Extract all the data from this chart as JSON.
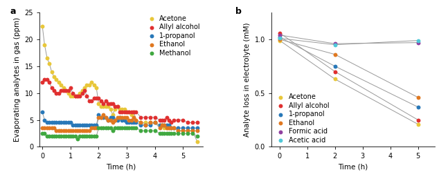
{
  "panel_a": {
    "xlabel": "Time (h)",
    "ylabel": "Evaporating analytes in gas (ppm)",
    "ylim": [
      0,
      25
    ],
    "xlim": [
      -0.1,
      5.7
    ],
    "yticks": [
      0,
      5,
      10,
      15,
      20,
      25
    ],
    "xticks": [
      0,
      1,
      2,
      3,
      4,
      5
    ],
    "series": {
      "Acetone": {
        "color": "#e8c73a",
        "x": [
          0.0,
          0.08,
          0.17,
          0.25,
          0.33,
          0.42,
          0.5,
          0.58,
          0.67,
          0.75,
          0.83,
          0.92,
          1.0,
          1.08,
          1.17,
          1.25,
          1.33,
          1.42,
          1.5,
          1.58,
          1.67,
          1.75,
          1.83,
          1.92,
          2.0,
          2.08,
          2.17,
          2.25,
          2.33,
          2.42,
          2.5,
          2.58,
          2.67,
          2.75,
          2.83,
          2.92,
          3.0,
          3.08,
          3.17,
          3.25,
          3.33,
          3.5,
          3.67,
          3.83,
          4.0,
          4.17,
          4.25,
          4.33,
          4.42,
          4.5,
          4.58,
          4.67,
          4.83,
          5.0,
          5.17,
          5.33,
          5.5
        ],
        "y": [
          22.5,
          19.0,
          16.5,
          15.5,
          14.0,
          13.0,
          12.5,
          12.0,
          11.5,
          11.0,
          10.5,
          10.0,
          9.5,
          9.5,
          9.5,
          9.5,
          10.0,
          10.5,
          11.0,
          11.5,
          11.5,
          12.0,
          11.5,
          11.0,
          8.0,
          7.5,
          7.5,
          7.5,
          7.5,
          7.0,
          6.0,
          7.0,
          7.5,
          7.0,
          7.0,
          7.0,
          6.5,
          6.5,
          6.0,
          6.5,
          5.0,
          4.5,
          4.5,
          4.5,
          4.5,
          4.0,
          4.0,
          3.5,
          3.5,
          3.5,
          3.5,
          3.5,
          3.0,
          3.0,
          3.0,
          3.0,
          1.0
        ]
      },
      "Allyl alcohol": {
        "color": "#e03030",
        "x": [
          0.0,
          0.08,
          0.17,
          0.25,
          0.33,
          0.42,
          0.5,
          0.58,
          0.67,
          0.75,
          0.83,
          0.92,
          1.0,
          1.08,
          1.17,
          1.25,
          1.33,
          1.42,
          1.5,
          1.58,
          1.67,
          1.75,
          1.83,
          1.92,
          2.0,
          2.08,
          2.17,
          2.25,
          2.33,
          2.42,
          2.5,
          2.58,
          2.67,
          2.75,
          2.83,
          2.92,
          3.0,
          3.08,
          3.17,
          3.25,
          3.33,
          3.5,
          3.67,
          3.83,
          4.0,
          4.17,
          4.25,
          4.33,
          4.42,
          4.5,
          4.58,
          4.67,
          4.83,
          5.0,
          5.17,
          5.33,
          5.5
        ],
        "y": [
          12.0,
          12.5,
          12.5,
          12.0,
          11.0,
          10.5,
          10.0,
          10.0,
          10.5,
          10.5,
          10.5,
          10.5,
          11.0,
          10.0,
          9.5,
          9.5,
          9.5,
          10.0,
          10.5,
          9.5,
          8.5,
          8.5,
          9.0,
          9.0,
          9.0,
          8.5,
          8.0,
          8.5,
          8.0,
          8.0,
          8.0,
          7.5,
          7.5,
          6.5,
          6.5,
          6.5,
          6.5,
          6.5,
          6.5,
          6.5,
          6.5,
          5.5,
          5.5,
          5.5,
          5.5,
          5.0,
          5.0,
          5.0,
          5.5,
          5.0,
          4.5,
          5.0,
          5.0,
          5.0,
          4.5,
          4.5,
          4.5
        ]
      },
      "1-propanol": {
        "color": "#2878b8",
        "x": [
          0.0,
          0.08,
          0.17,
          0.25,
          0.33,
          0.42,
          0.5,
          0.58,
          0.67,
          0.75,
          0.83,
          0.92,
          1.0,
          1.08,
          1.17,
          1.25,
          1.33,
          1.42,
          1.5,
          1.58,
          1.67,
          1.75,
          1.83,
          1.92,
          2.0,
          2.08,
          2.17,
          2.25,
          2.33,
          2.42,
          2.5,
          2.58,
          2.67,
          2.75,
          2.83,
          2.92,
          3.0,
          3.08,
          3.17,
          3.25,
          3.33,
          3.5,
          3.67,
          3.83,
          4.0,
          4.17,
          4.25,
          4.33,
          4.42,
          4.5,
          4.58,
          4.67,
          4.83,
          5.0,
          5.17,
          5.33,
          5.5
        ],
        "y": [
          6.5,
          5.0,
          4.5,
          4.5,
          4.5,
          4.5,
          4.5,
          4.5,
          4.5,
          4.5,
          4.5,
          4.5,
          4.5,
          4.0,
          4.0,
          4.0,
          4.0,
          4.0,
          4.0,
          4.0,
          4.0,
          4.0,
          4.0,
          4.0,
          6.0,
          5.5,
          5.5,
          5.5,
          5.0,
          5.5,
          5.5,
          5.0,
          5.0,
          5.5,
          5.0,
          5.0,
          4.5,
          4.5,
          4.5,
          4.5,
          4.5,
          4.0,
          4.0,
          4.0,
          4.5,
          4.0,
          4.0,
          4.0,
          4.0,
          4.0,
          3.5,
          3.5,
          3.5,
          3.5,
          3.5,
          3.5,
          3.5
        ]
      },
      "Ethanol": {
        "color": "#e07820",
        "x": [
          0.0,
          0.08,
          0.17,
          0.25,
          0.33,
          0.42,
          0.5,
          0.58,
          0.67,
          0.75,
          0.83,
          0.92,
          1.0,
          1.08,
          1.17,
          1.25,
          1.33,
          1.42,
          1.5,
          1.58,
          1.67,
          1.75,
          1.83,
          1.92,
          2.0,
          2.08,
          2.17,
          2.25,
          2.33,
          2.42,
          2.5,
          2.58,
          2.67,
          2.75,
          2.83,
          2.92,
          3.0,
          3.08,
          3.17,
          3.25,
          3.33,
          3.5,
          3.67,
          3.83,
          4.0,
          4.17,
          4.25,
          4.33,
          4.42,
          4.5,
          4.58,
          4.67,
          4.83,
          5.0,
          5.17,
          5.33,
          5.5
        ],
        "y": [
          3.5,
          3.5,
          3.5,
          3.5,
          3.5,
          3.5,
          3.0,
          3.0,
          3.0,
          3.0,
          3.0,
          3.0,
          3.0,
          3.0,
          3.0,
          3.0,
          3.0,
          3.0,
          3.0,
          3.0,
          3.0,
          3.5,
          3.5,
          3.5,
          5.5,
          5.5,
          6.0,
          5.5,
          5.0,
          5.0,
          4.5,
          5.0,
          5.5,
          5.5,
          5.5,
          5.5,
          5.5,
          5.0,
          5.0,
          5.5,
          5.0,
          4.5,
          4.0,
          4.5,
          4.5,
          3.5,
          4.0,
          4.0,
          3.5,
          3.5,
          3.5,
          3.5,
          3.0,
          3.0,
          3.0,
          3.0,
          3.0
        ]
      },
      "Methanol": {
        "color": "#40a840",
        "x": [
          0.0,
          0.08,
          0.17,
          0.25,
          0.33,
          0.42,
          0.5,
          0.58,
          0.67,
          0.75,
          0.83,
          0.92,
          1.0,
          1.08,
          1.17,
          1.25,
          1.33,
          1.42,
          1.5,
          1.58,
          1.67,
          1.75,
          1.83,
          1.92,
          2.0,
          2.08,
          2.17,
          2.25,
          2.33,
          2.42,
          2.5,
          2.58,
          2.67,
          2.75,
          2.83,
          2.92,
          3.0,
          3.08,
          3.17,
          3.25,
          3.33,
          3.5,
          3.67,
          3.83,
          4.0,
          4.17,
          4.25,
          4.33,
          4.42,
          4.5,
          4.58,
          4.67,
          4.83,
          5.0,
          5.17,
          5.33,
          5.5
        ],
        "y": [
          2.5,
          2.5,
          2.0,
          2.0,
          2.0,
          2.0,
          2.0,
          2.0,
          2.0,
          2.0,
          2.0,
          2.0,
          2.0,
          2.0,
          2.0,
          1.5,
          2.0,
          2.0,
          2.0,
          2.0,
          2.0,
          2.0,
          2.0,
          2.0,
          3.5,
          3.5,
          3.5,
          3.5,
          3.5,
          3.5,
          3.0,
          3.5,
          3.5,
          3.5,
          3.5,
          3.5,
          3.5,
          3.5,
          3.5,
          3.5,
          3.5,
          3.0,
          3.0,
          3.0,
          3.0,
          2.5,
          2.5,
          2.5,
          2.5,
          2.5,
          2.5,
          2.5,
          2.5,
          2.5,
          2.5,
          2.5,
          2.0
        ]
      }
    }
  },
  "panel_b": {
    "xlabel": "Time (h)",
    "ylabel": "Analyte loss in electrolyte (mM)",
    "ylim": [
      0,
      1.25
    ],
    "xlim": [
      -0.3,
      5.6
    ],
    "yticks": [
      0,
      0.5,
      1.0
    ],
    "xticks": [
      0,
      1,
      2,
      3,
      4,
      5
    ],
    "series": {
      "Acetone": {
        "color": "#e8c73a",
        "x": [
          0,
          2,
          5
        ],
        "y": [
          0.99,
          0.63,
          0.21
        ]
      },
      "Allyl alcohol": {
        "color": "#e03030",
        "x": [
          0,
          2,
          5
        ],
        "y": [
          1.06,
          0.7,
          0.25
        ]
      },
      "1-propanol": {
        "color": "#2878b8",
        "x": [
          0,
          2,
          5
        ],
        "y": [
          1.02,
          0.75,
          0.37
        ]
      },
      "Ethanol": {
        "color": "#e07820",
        "x": [
          0,
          2,
          5
        ],
        "y": [
          1.0,
          0.86,
          0.46
        ]
      },
      "Formic acid": {
        "color": "#9040a0",
        "x": [
          0,
          2,
          5
        ],
        "y": [
          1.04,
          0.96,
          0.97
        ]
      },
      "Acetic acid": {
        "color": "#50c8d8",
        "x": [
          0,
          2,
          5
        ],
        "y": [
          1.01,
          0.95,
          0.99
        ]
      }
    }
  },
  "line_color": "#999999",
  "marker_size": 18,
  "font_size": 7,
  "label_font_size": 7.5,
  "tick_font_size": 7,
  "background": "#ffffff"
}
